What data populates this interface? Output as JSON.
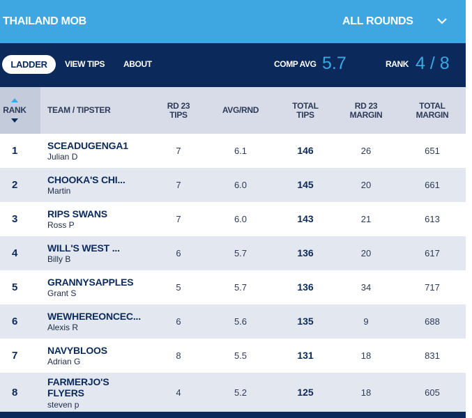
{
  "header": {
    "competition": "THAILAND MOB",
    "round_select": "ALL ROUNDS",
    "chevron_icon": "chevron-down-icon"
  },
  "nav": {
    "tabs": [
      {
        "label": "LADDER"
      },
      {
        "label": "VIEW TIPS"
      },
      {
        "label": "ABOUT"
      }
    ],
    "comp_avg_label": "COMP AVG",
    "comp_avg_value": "5.7",
    "rank_label": "RANK",
    "rank_value": "4 / 8"
  },
  "table": {
    "columns": {
      "rank": "RANK",
      "team": "TEAM / TIPSTER",
      "rd_tips": [
        "RD 23",
        "TIPS"
      ],
      "avg": "AVG/RND",
      "total_tips": [
        "TOTAL",
        "TIPS"
      ],
      "rd_margin": [
        "RD 23",
        "MARGIN"
      ],
      "total_margin": [
        "TOTAL",
        "MARGIN"
      ]
    },
    "rows": [
      {
        "rank": "1",
        "team": "SCEADUGENGA1",
        "tipster": "Julian D",
        "rd_tips": "7",
        "avg": "6.1",
        "total_tips": "146",
        "rd_margin": "26",
        "total_margin": "651"
      },
      {
        "rank": "2",
        "team": "CHOOKA'S CHI...",
        "tipster": "Martin",
        "rd_tips": "7",
        "avg": "6.0",
        "total_tips": "145",
        "rd_margin": "20",
        "total_margin": "661"
      },
      {
        "rank": "3",
        "team": "RIPS SWANS",
        "tipster": "Ross P",
        "rd_tips": "7",
        "avg": "6.0",
        "total_tips": "143",
        "rd_margin": "21",
        "total_margin": "613"
      },
      {
        "rank": "4",
        "team": "WILL'S WEST ...",
        "tipster": "Billy B",
        "rd_tips": "6",
        "avg": "5.7",
        "total_tips": "136",
        "rd_margin": "20",
        "total_margin": "617"
      },
      {
        "rank": "5",
        "team": "GRANNYSAPPLES",
        "tipster": "Grant S",
        "rd_tips": "5",
        "avg": "5.7",
        "total_tips": "136",
        "rd_margin": "34",
        "total_margin": "717"
      },
      {
        "rank": "6",
        "team": "WEWHEREONCEC...",
        "tipster": "Alexis R",
        "rd_tips": "6",
        "avg": "5.6",
        "total_tips": "135",
        "rd_margin": "9",
        "total_margin": "688"
      },
      {
        "rank": "7",
        "team": "NAVYBLOOS",
        "tipster": "Adrian G",
        "rd_tips": "8",
        "avg": "5.5",
        "total_tips": "131",
        "rd_margin": "18",
        "total_margin": "831"
      },
      {
        "rank": "8",
        "team": "FARMERJO'S FLYERS",
        "tipster": "steven p",
        "rd_tips": "4",
        "avg": "5.2",
        "total_tips": "125",
        "rd_margin": "18",
        "total_margin": "605"
      }
    ]
  },
  "colors": {
    "navy": "#0b2a5b",
    "accent_blue": "#3ea7e2",
    "header_grey": "#d7dce8",
    "row_alt": "#e3e7f0"
  }
}
